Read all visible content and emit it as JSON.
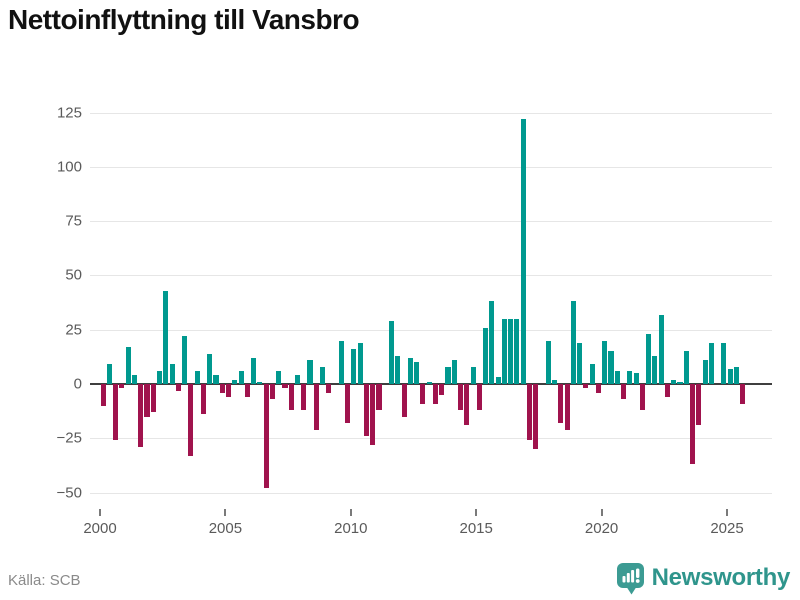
{
  "title": "Nettoinflyttning till Vansbro",
  "source": "Källa: SCB",
  "brand": {
    "name": "Newsworthy",
    "color": "#2f958c"
  },
  "chart_data": {
    "type": "bar",
    "title": "Nettoinflyttning till Vansbro",
    "period": "quarterly",
    "start_quarter": "2000Q1",
    "end_quarter": "2025Q3",
    "values": [
      -10,
      9,
      -26,
      -2,
      17,
      4,
      -29,
      -15,
      -13,
      6,
      43,
      9,
      -3,
      22,
      -33,
      6,
      -14,
      14,
      4,
      -4,
      -6,
      2,
      6,
      -6,
      12,
      1,
      -48,
      -7,
      6,
      -2,
      -12,
      4,
      -12,
      11,
      -21,
      8,
      -4,
      0,
      20,
      -18,
      16,
      19,
      -24,
      -28,
      -12,
      0,
      29,
      13,
      -15,
      12,
      10,
      -9,
      1,
      -9,
      -5,
      8,
      11,
      -12,
      -19,
      8,
      -12,
      26,
      38,
      3,
      30,
      30,
      30,
      122,
      -26,
      -30,
      0,
      20,
      2,
      -18,
      -21,
      38,
      19,
      -2,
      9,
      -4,
      20,
      15,
      6,
      -7,
      6,
      5,
      -12,
      23,
      13,
      32,
      -6,
      2,
      1,
      15,
      -37,
      -19,
      11,
      19,
      0,
      19,
      7,
      8,
      -9
    ],
    "x_ticks": [
      2000,
      2005,
      2010,
      2015,
      2020,
      2025
    ],
    "y_ticks": [
      -50,
      -25,
      0,
      25,
      50,
      75,
      100,
      125
    ],
    "ylim": [
      -50,
      125
    ],
    "grid": true,
    "legend": "none",
    "positive_color": "#00998f",
    "negative_color": "#a0134d",
    "xlabel": "",
    "ylabel": ""
  }
}
